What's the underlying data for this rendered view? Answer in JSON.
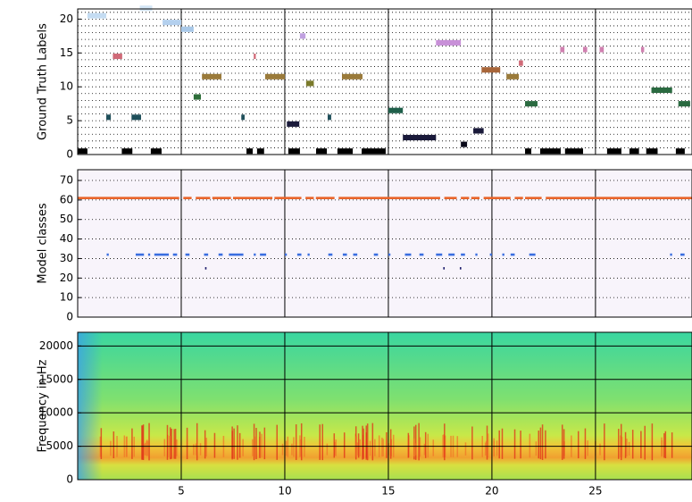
{
  "chart_data": [
    {
      "type": "timeline",
      "ylabel": "Ground Truth Labels",
      "xlim": [
        0,
        29.66
      ],
      "xticks": [
        5,
        10,
        15,
        20,
        25
      ],
      "ylim": [
        0,
        21.5
      ],
      "yticks": [
        0,
        5,
        10,
        15,
        20
      ],
      "yminorticks": [
        1,
        2,
        3,
        4,
        6,
        7,
        8,
        9,
        11,
        12,
        13,
        14,
        16,
        17,
        18,
        19,
        21
      ],
      "bar_height": 0.8,
      "segments": [
        {
          "y": 20.5,
          "start": 0.47,
          "end": 1.38,
          "color": "#c4dcf2"
        },
        {
          "y": 21.6,
          "start": 3.0,
          "end": 3.6,
          "color": "#d4e6f6"
        },
        {
          "y": 19.5,
          "start": 4.1,
          "end": 5.0,
          "color": "#b4d0ee"
        },
        {
          "y": 18.5,
          "start": 5.0,
          "end": 5.6,
          "color": "#a8c8e8"
        },
        {
          "y": 14.5,
          "start": 1.7,
          "end": 2.15,
          "color": "#d06a78"
        },
        {
          "y": 5.5,
          "start": 1.38,
          "end": 1.6,
          "color": "#1f4f5a"
        },
        {
          "y": 5.5,
          "start": 2.6,
          "end": 3.06,
          "color": "#1f4f5a"
        },
        {
          "y": 8.5,
          "start": 5.6,
          "end": 5.95,
          "color": "#2e6e3a"
        },
        {
          "y": 11.5,
          "start": 6.0,
          "end": 6.94,
          "color": "#9a7a3a"
        },
        {
          "y": 14.5,
          "start": 8.5,
          "end": 8.6,
          "color": "#d06a78"
        },
        {
          "y": 5.5,
          "start": 7.9,
          "end": 8.06,
          "color": "#1f4f5a"
        },
        {
          "y": 11.5,
          "start": 9.05,
          "end": 10.0,
          "color": "#9a7a3a"
        },
        {
          "y": 17.5,
          "start": 10.73,
          "end": 11.0,
          "color": "#c0a0e0"
        },
        {
          "y": 10.5,
          "start": 11.03,
          "end": 11.4,
          "color": "#7a7a2a"
        },
        {
          "y": 4.5,
          "start": 10.1,
          "end": 10.7,
          "color": "#1a1a3a"
        },
        {
          "y": 5.5,
          "start": 12.07,
          "end": 12.24,
          "color": "#1f4f5a"
        },
        {
          "y": 11.5,
          "start": 12.76,
          "end": 13.75,
          "color": "#9a7a3a"
        },
        {
          "y": 6.5,
          "start": 15.0,
          "end": 15.7,
          "color": "#1f5f4a"
        },
        {
          "y": 2.5,
          "start": 15.7,
          "end": 17.3,
          "color": "#1a1a3a"
        },
        {
          "y": 16.5,
          "start": 17.3,
          "end": 18.5,
          "color": "#c890d8"
        },
        {
          "y": 1.5,
          "start": 18.5,
          "end": 18.8,
          "color": "#0a0a1a"
        },
        {
          "y": 3.5,
          "start": 19.1,
          "end": 19.6,
          "color": "#1a1a3a"
        },
        {
          "y": 12.5,
          "start": 19.5,
          "end": 20.4,
          "color": "#a8663a"
        },
        {
          "y": 11.5,
          "start": 20.7,
          "end": 21.3,
          "color": "#9a7a3a"
        },
        {
          "y": 13.5,
          "start": 21.3,
          "end": 21.5,
          "color": "#d06a78"
        },
        {
          "y": 7.5,
          "start": 21.6,
          "end": 22.2,
          "color": "#2a6a40"
        },
        {
          "y": 15.5,
          "start": 23.3,
          "end": 23.5,
          "color": "#d080b0"
        },
        {
          "y": 15.5,
          "start": 24.4,
          "end": 24.6,
          "color": "#d080b0"
        },
        {
          "y": 15.5,
          "start": 25.2,
          "end": 25.4,
          "color": "#d080b0"
        },
        {
          "y": 15.5,
          "start": 27.2,
          "end": 27.35,
          "color": "#d080b0"
        },
        {
          "y": 9.5,
          "start": 27.7,
          "end": 28.7,
          "color": "#2a6a40"
        },
        {
          "y": 7.5,
          "start": 29.0,
          "end": 29.57,
          "color": "#2a6a40"
        },
        {
          "y": 0.5,
          "start": 0,
          "end": 0.47,
          "color": "#000000"
        },
        {
          "y": 0.5,
          "start": 2.13,
          "end": 2.64,
          "color": "#000000"
        },
        {
          "y": 0.5,
          "start": 3.53,
          "end": 4.05,
          "color": "#000000"
        },
        {
          "y": 0.5,
          "start": 8.15,
          "end": 8.45,
          "color": "#000000"
        },
        {
          "y": 0.5,
          "start": 8.66,
          "end": 9.0,
          "color": "#000000"
        },
        {
          "y": 0.5,
          "start": 10.17,
          "end": 10.73,
          "color": "#000000"
        },
        {
          "y": 0.5,
          "start": 11.51,
          "end": 12.03,
          "color": "#000000"
        },
        {
          "y": 0.5,
          "start": 12.54,
          "end": 13.28,
          "color": "#000000"
        },
        {
          "y": 0.5,
          "start": 13.71,
          "end": 14.87,
          "color": "#000000"
        },
        {
          "y": 0.5,
          "start": 21.6,
          "end": 21.9,
          "color": "#000000"
        },
        {
          "y": 0.5,
          "start": 22.33,
          "end": 23.32,
          "color": "#000000"
        },
        {
          "y": 0.5,
          "start": 23.53,
          "end": 24.4,
          "color": "#000000"
        },
        {
          "y": 0.5,
          "start": 25.56,
          "end": 26.25,
          "color": "#000000"
        },
        {
          "y": 0.5,
          "start": 26.64,
          "end": 27.1,
          "color": "#000000"
        },
        {
          "y": 0.5,
          "start": 27.45,
          "end": 28.0,
          "color": "#000000"
        },
        {
          "y": 0.5,
          "start": 28.88,
          "end": 29.31,
          "color": "#000000"
        }
      ]
    },
    {
      "type": "timeline",
      "ylabel": "Model classes",
      "xlim": [
        0,
        29.66
      ],
      "xticks": [
        5,
        10,
        15,
        20,
        25
      ],
      "ylim": [
        0,
        75.5
      ],
      "yticks": [
        0,
        10,
        20,
        30,
        40,
        50,
        60,
        70
      ],
      "bar_height": 1.2,
      "background": "#f8f4fb",
      "segments": [
        {
          "y": 61,
          "start": 0,
          "end": 4.9,
          "color": "#e8642a"
        },
        {
          "y": 61,
          "start": 5.1,
          "end": 5.5,
          "color": "#e8642a"
        },
        {
          "y": 61,
          "start": 5.7,
          "end": 6.4,
          "color": "#e8642a"
        },
        {
          "y": 61,
          "start": 6.5,
          "end": 7.4,
          "color": "#e8642a"
        },
        {
          "y": 61,
          "start": 7.5,
          "end": 9.4,
          "color": "#e8642a"
        },
        {
          "y": 61,
          "start": 9.5,
          "end": 10.8,
          "color": "#e8642a"
        },
        {
          "y": 61,
          "start": 11.0,
          "end": 11.4,
          "color": "#e8642a"
        },
        {
          "y": 61,
          "start": 11.5,
          "end": 12.4,
          "color": "#e8642a"
        },
        {
          "y": 61,
          "start": 12.6,
          "end": 17.5,
          "color": "#e8642a"
        },
        {
          "y": 61,
          "start": 17.7,
          "end": 18.3,
          "color": "#e8642a"
        },
        {
          "y": 61,
          "start": 18.5,
          "end": 18.9,
          "color": "#e8642a"
        },
        {
          "y": 61,
          "start": 19.0,
          "end": 19.4,
          "color": "#e8642a"
        },
        {
          "y": 61,
          "start": 19.6,
          "end": 20.9,
          "color": "#e8642a"
        },
        {
          "y": 61,
          "start": 21.1,
          "end": 21.5,
          "color": "#e8642a"
        },
        {
          "y": 61,
          "start": 21.6,
          "end": 22.4,
          "color": "#e8642a"
        },
        {
          "y": 61,
          "start": 22.6,
          "end": 29.66,
          "color": "#e8642a"
        },
        {
          "y": 32,
          "start": 1.4,
          "end": 1.5,
          "color": "#3a6ee0"
        },
        {
          "y": 32,
          "start": 2.8,
          "end": 3.2,
          "color": "#3a6ee0"
        },
        {
          "y": 32,
          "start": 3.4,
          "end": 3.5,
          "color": "#3a6ee0"
        },
        {
          "y": 32,
          "start": 3.7,
          "end": 4.4,
          "color": "#3a6ee0"
        },
        {
          "y": 32,
          "start": 4.6,
          "end": 4.8,
          "color": "#3a6ee0"
        },
        {
          "y": 32,
          "start": 5.2,
          "end": 5.4,
          "color": "#3a6ee0"
        },
        {
          "y": 32,
          "start": 6.1,
          "end": 6.3,
          "color": "#3a6ee0"
        },
        {
          "y": 32,
          "start": 6.8,
          "end": 7.0,
          "color": "#3a6ee0"
        },
        {
          "y": 32,
          "start": 7.3,
          "end": 8.0,
          "color": "#3a6ee0"
        },
        {
          "y": 32,
          "start": 8.5,
          "end": 8.6,
          "color": "#3a6ee0"
        },
        {
          "y": 32,
          "start": 8.8,
          "end": 9.1,
          "color": "#3a6ee0"
        },
        {
          "y": 32,
          "start": 10.0,
          "end": 10.1,
          "color": "#3a6ee0"
        },
        {
          "y": 32,
          "start": 10.6,
          "end": 10.8,
          "color": "#3a6ee0"
        },
        {
          "y": 32,
          "start": 11.1,
          "end": 11.2,
          "color": "#3a6ee0"
        },
        {
          "y": 32,
          "start": 12.1,
          "end": 12.3,
          "color": "#3a6ee0"
        },
        {
          "y": 32,
          "start": 12.8,
          "end": 13.0,
          "color": "#3a6ee0"
        },
        {
          "y": 32,
          "start": 13.3,
          "end": 13.5,
          "color": "#3a6ee0"
        },
        {
          "y": 32,
          "start": 14.3,
          "end": 14.5,
          "color": "#3a6ee0"
        },
        {
          "y": 32,
          "start": 15.0,
          "end": 15.1,
          "color": "#3a6ee0"
        },
        {
          "y": 32,
          "start": 15.8,
          "end": 16.1,
          "color": "#3a6ee0"
        },
        {
          "y": 32,
          "start": 16.5,
          "end": 16.7,
          "color": "#3a6ee0"
        },
        {
          "y": 32,
          "start": 17.3,
          "end": 17.6,
          "color": "#3a6ee0"
        },
        {
          "y": 32,
          "start": 17.9,
          "end": 18.2,
          "color": "#3a6ee0"
        },
        {
          "y": 32,
          "start": 18.5,
          "end": 18.7,
          "color": "#3a6ee0"
        },
        {
          "y": 32,
          "start": 19.2,
          "end": 19.3,
          "color": "#3a6ee0"
        },
        {
          "y": 32,
          "start": 19.9,
          "end": 20.0,
          "color": "#3a6ee0"
        },
        {
          "y": 32,
          "start": 20.5,
          "end": 20.6,
          "color": "#3a6ee0"
        },
        {
          "y": 32,
          "start": 20.9,
          "end": 21.1,
          "color": "#3a6ee0"
        },
        {
          "y": 32,
          "start": 21.8,
          "end": 22.1,
          "color": "#3a6ee0"
        },
        {
          "y": 32,
          "start": 28.6,
          "end": 28.7,
          "color": "#3a6ee0"
        },
        {
          "y": 32,
          "start": 29.1,
          "end": 29.3,
          "color": "#3a6ee0"
        },
        {
          "y": 25,
          "start": 6.15,
          "end": 6.22,
          "color": "#1a1a6a"
        },
        {
          "y": 25,
          "start": 17.65,
          "end": 17.72,
          "color": "#1a1a6a"
        },
        {
          "y": 25,
          "start": 18.45,
          "end": 18.52,
          "color": "#1a1a6a"
        }
      ]
    },
    {
      "type": "spectrogram",
      "ylabel": "Frequency in Hz",
      "xlim": [
        0,
        29.66
      ],
      "xticks": [
        5,
        10,
        15,
        20,
        25
      ],
      "ylim": [
        0,
        22050
      ],
      "yticks": [
        0,
        5000,
        10000,
        15000,
        20000
      ]
    }
  ]
}
